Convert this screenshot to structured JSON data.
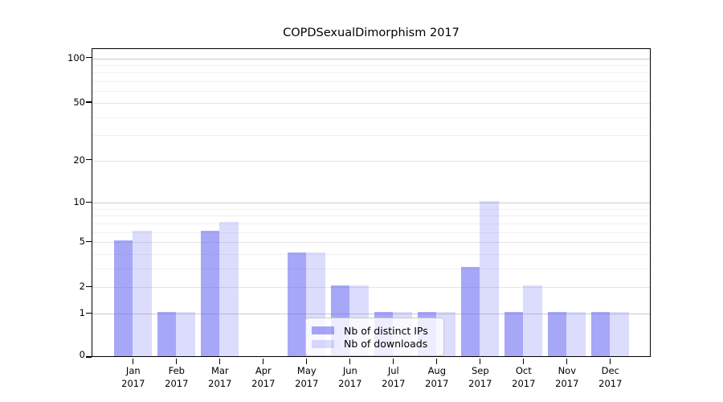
{
  "title": "COPDSexualDimorphism 2017",
  "chart_data": {
    "type": "bar",
    "title": "COPDSexualDimorphism 2017",
    "categories": [
      "Jan 2017",
      "Feb 2017",
      "Mar 2017",
      "Apr 2017",
      "May 2017",
      "Jun 2017",
      "Jul 2017",
      "Aug 2017",
      "Sep 2017",
      "Oct 2017",
      "Nov 2017",
      "Dec 2017"
    ],
    "month_labels": [
      "Jan",
      "Feb",
      "Mar",
      "Apr",
      "May",
      "Jun",
      "Jul",
      "Aug",
      "Sep",
      "Oct",
      "Nov",
      "Dec"
    ],
    "year_label": "2017",
    "series": [
      {
        "name": "Nb of distinct IPs",
        "values": [
          5,
          1,
          6,
          0,
          4,
          2,
          1,
          1,
          3,
          1,
          1,
          1
        ],
        "color": "rgba(95,95,240,0.55)"
      },
      {
        "name": "Nb of downloads",
        "values": [
          6,
          1,
          7,
          0,
          4,
          2,
          1,
          1,
          10,
          2,
          1,
          1
        ],
        "color": "rgba(95,95,240,0.22)"
      }
    ],
    "xlabel": "",
    "ylabel": "",
    "yscale": "log1p",
    "ylim": [
      0,
      116
    ],
    "y_ticks": [
      0,
      1,
      2,
      5,
      10,
      20,
      50,
      100
    ],
    "y_gridlines_major": [
      1,
      10,
      100
    ],
    "y_gridlines_labeled": [
      2,
      5,
      20,
      50
    ],
    "y_gridlines_minor": [
      3,
      4,
      6,
      7,
      8,
      9,
      30,
      40,
      60,
      70,
      80,
      90
    ],
    "grid": "horizontal",
    "legend_position": "inside lower center"
  },
  "legend": {
    "entries": [
      "Nb of distinct IPs",
      "Nb of downloads"
    ]
  },
  "colors": {
    "background": "#ffffff",
    "bar_distinct_ips": "rgba(95,95,240,0.55)",
    "bar_downloads": "rgba(95,95,240,0.22)",
    "axis": "#000000",
    "grid_major": "#cccccc",
    "grid_labeled": "#e5e5e5",
    "grid_minor": "#f0f0f0",
    "legend_background": "rgba(255,255,255,0.8)",
    "legend_border": "#c9c9c9",
    "text": "#000000"
  }
}
